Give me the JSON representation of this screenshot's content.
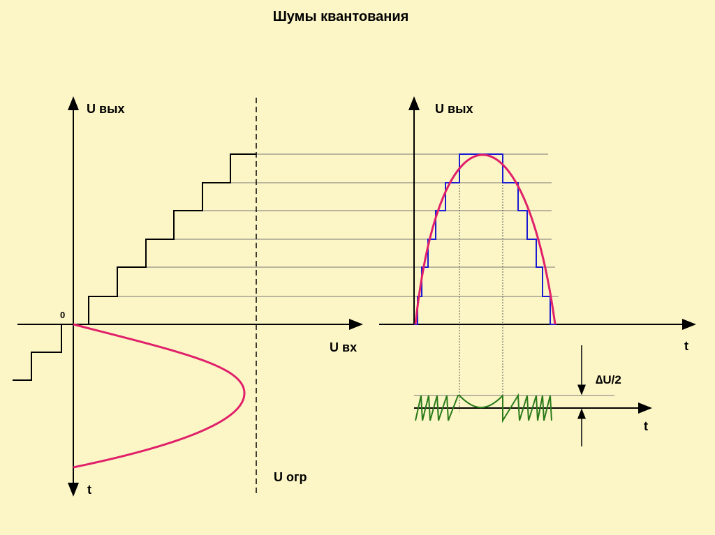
{
  "title": "Шумы квантования",
  "left": {
    "y_label": "U вых",
    "origin_label": "0",
    "x_label": "U вх",
    "limit_label": "U огр",
    "t_label": "t"
  },
  "right": {
    "y_label": "U вых",
    "t_label": "t"
  },
  "noise": {
    "delta_label": "∆U/2",
    "t_label": "t"
  }
}
